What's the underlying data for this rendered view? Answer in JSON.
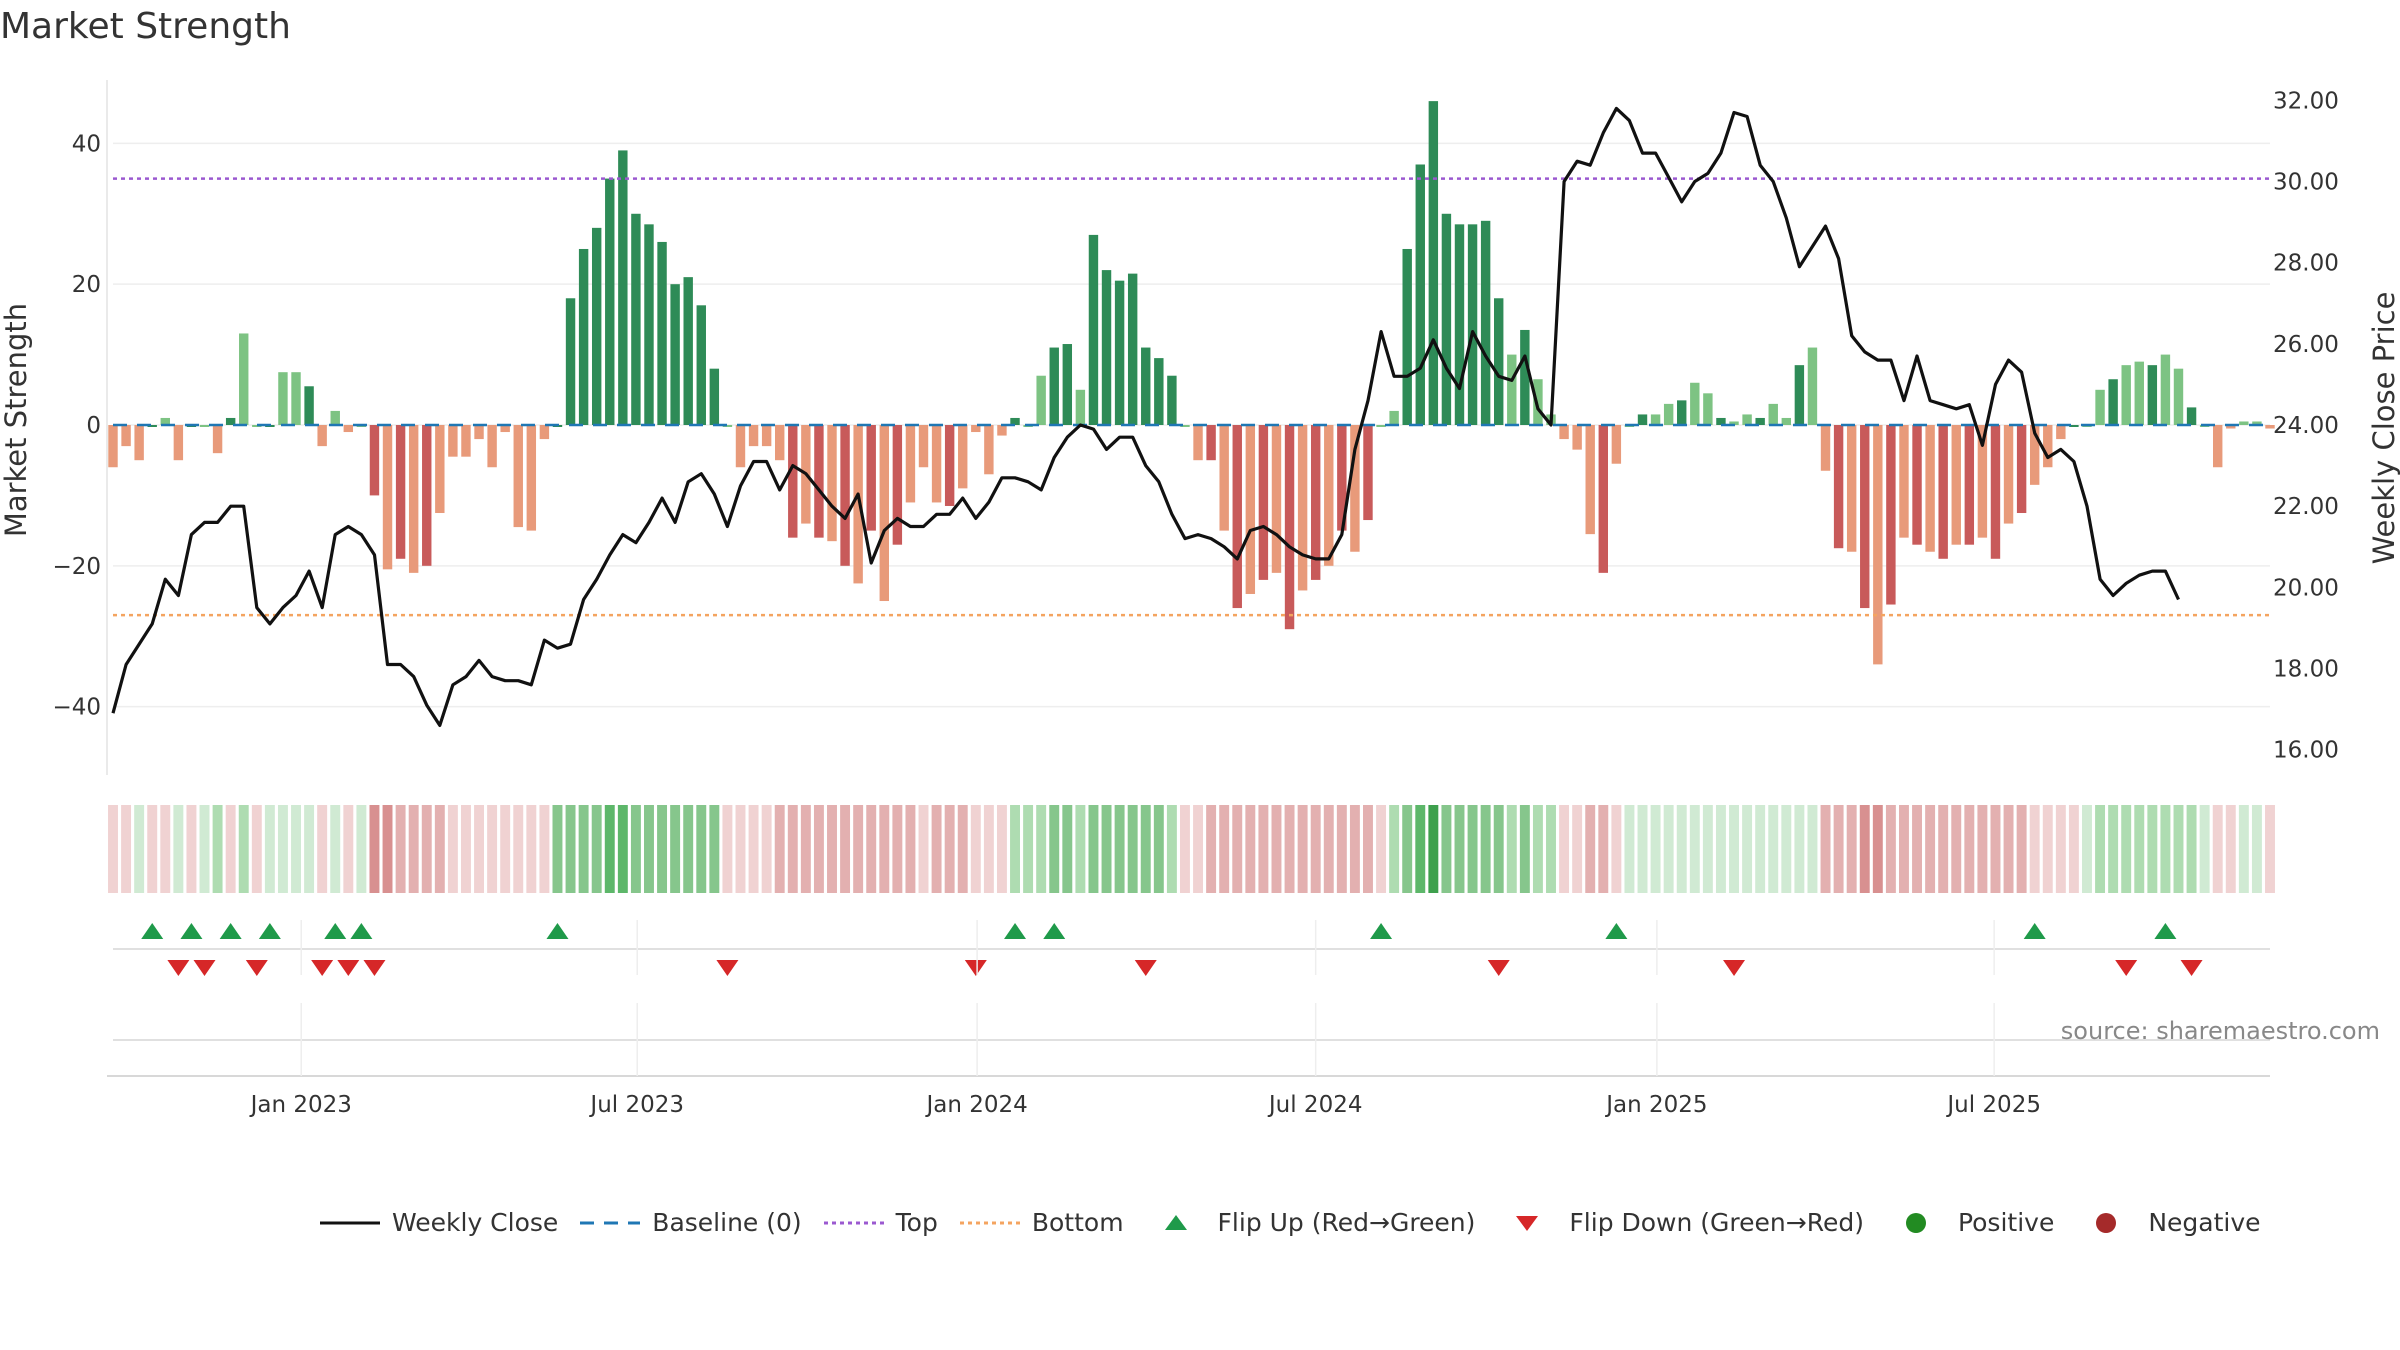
{
  "title": "Market Strength",
  "source": "source: sharemaestro.com",
  "colors": {
    "strong_green": "#2e8b57",
    "light_green": "#7dc383",
    "strong_red": "#c85a5a",
    "light_red": "#e89a7a",
    "baseline": "#1f77b4",
    "top": "#9b59d0",
    "bottom": "#f4a460",
    "flip_up": "#1f9a4a",
    "flip_down": "#d62728",
    "price_line": "#111111"
  },
  "legend": [
    {
      "key": "close",
      "label": "Weekly Close"
    },
    {
      "key": "baseline",
      "label": "Baseline (0)"
    },
    {
      "key": "top",
      "label": "Top"
    },
    {
      "key": "bottom",
      "label": "Bottom"
    },
    {
      "key": "flip_up",
      "label": "Flip Up (Red→Green)"
    },
    {
      "key": "flip_down",
      "label": "Flip Down (Green→Red)"
    },
    {
      "key": "positive",
      "label": "Positive"
    },
    {
      "key": "negative",
      "label": "Negative"
    }
  ],
  "chart_data": {
    "type": "bar",
    "title": "Market Strength",
    "ylabel": "Market Strength",
    "y2label": "Weekly Close Price",
    "ylim": [
      -49,
      49
    ],
    "y2lim": [
      15.5,
      32.5
    ],
    "yticks": [
      40,
      20,
      0,
      -20,
      -40
    ],
    "yticklabels": [
      "40",
      "20",
      "0",
      "−20",
      "−40"
    ],
    "y2ticks": [
      32,
      30,
      28,
      26,
      24,
      22,
      20,
      18,
      16
    ],
    "y2ticklabels": [
      "32.00",
      "30.00",
      "28.00",
      "26.00",
      "24.00",
      "22.00",
      "20.00",
      "18.00",
      "16.00"
    ],
    "xticks": [
      14.4,
      40.1,
      66.1,
      92.0,
      118.1,
      143.9
    ],
    "xticklabels": [
      "Jan 2023",
      "Jul 2023",
      "Jan 2024",
      "Jul 2024",
      "Jan 2025",
      "Jul 2025"
    ],
    "top_level": 35,
    "bottom_level": -27,
    "baseline_level": 0,
    "strength": [
      -6,
      -3,
      -5,
      0,
      1,
      -5,
      0,
      0,
      -4,
      1,
      13,
      0,
      0,
      7.5,
      7.5,
      5.5,
      -3,
      2,
      -1,
      0,
      -10,
      -20.5,
      -19,
      -21,
      -20,
      -12.5,
      -4.5,
      -4.5,
      -2,
      -6,
      -1,
      -14.5,
      -15,
      -2,
      0,
      18,
      25,
      28,
      35,
      39,
      30,
      28.5,
      26,
      20,
      21,
      17,
      8,
      0,
      -6,
      -3,
      -3,
      -5,
      -16,
      -14,
      -16,
      -16.5,
      -20,
      -22.5,
      -15,
      -25,
      -17,
      -11,
      -6,
      -11,
      -11.5,
      -9,
      -1,
      -7,
      -1.5,
      1,
      0,
      7,
      11,
      11.5,
      5,
      27,
      22,
      20.5,
      21.5,
      11,
      9.5,
      7,
      0,
      -5,
      -5,
      -15,
      -26,
      -24,
      -22,
      -21,
      -29,
      -23.5,
      -22,
      -20,
      -15,
      -18,
      -13.5,
      0,
      2,
      25,
      37,
      46,
      30,
      28.5,
      28.5,
      29,
      18,
      10,
      13.5,
      6.5,
      1.5,
      -2,
      -3.5,
      -15.5,
      -21,
      -5.5,
      0,
      1.5,
      1.5,
      3,
      3.5,
      6,
      4.5,
      1,
      0.5,
      1.5,
      1,
      3,
      1,
      8.5,
      11,
      -6.5,
      -17.5,
      -18,
      -26,
      -34,
      -25.5,
      -16,
      -17,
      -18,
      -19,
      -17,
      -17,
      -16,
      -19,
      -14,
      -12.5,
      -8.5,
      -6,
      -2,
      0,
      0,
      5,
      6.5,
      8.5,
      9,
      8.5,
      10,
      8,
      2.5,
      0,
      -6,
      -0.5,
      0.5,
      0.5,
      -0.5
    ],
    "close": [
      16.9,
      18.1,
      18.6,
      19.1,
      20.2,
      19.8,
      21.3,
      21.6,
      21.6,
      22.0,
      22.0,
      19.5,
      19.1,
      19.5,
      19.8,
      20.4,
      19.5,
      21.3,
      21.5,
      21.3,
      20.8,
      18.1,
      18.1,
      17.8,
      17.1,
      16.6,
      17.6,
      17.8,
      18.2,
      17.8,
      17.7,
      17.7,
      17.6,
      18.7,
      18.5,
      18.6,
      19.7,
      20.2,
      20.8,
      21.3,
      21.1,
      21.6,
      22.2,
      21.6,
      22.6,
      22.8,
      22.3,
      21.5,
      22.5,
      23.1,
      23.1,
      22.4,
      23.0,
      22.8,
      22.4,
      22.0,
      21.7,
      22.3,
      20.6,
      21.4,
      21.7,
      21.5,
      21.5,
      21.8,
      21.8,
      22.2,
      21.7,
      22.1,
      22.7,
      22.7,
      22.6,
      22.4,
      23.2,
      23.7,
      24.0,
      23.9,
      23.4,
      23.7,
      23.7,
      23.0,
      22.6,
      21.8,
      21.2,
      21.3,
      21.2,
      21.0,
      20.7,
      21.4,
      21.5,
      21.3,
      21.0,
      20.8,
      20.7,
      20.7,
      21.3,
      23.4,
      24.6,
      26.3,
      25.2,
      25.2,
      25.4,
      26.1,
      25.4,
      24.9,
      26.3,
      25.7,
      25.2,
      25.1,
      25.7,
      24.4,
      24.0,
      30.0,
      30.5,
      30.4,
      31.2,
      31.8,
      31.5,
      30.7,
      30.7,
      30.1,
      29.5,
      30.0,
      30.2,
      30.7,
      31.7,
      31.6,
      30.4,
      30.0,
      29.1,
      27.9,
      28.4,
      28.9,
      28.1,
      26.2,
      25.8,
      25.6,
      25.6,
      24.6,
      25.7,
      24.6,
      24.5,
      24.4,
      24.5,
      23.5,
      25.0,
      25.6,
      25.3,
      23.8,
      23.2,
      23.4,
      23.1,
      22.0,
      20.2,
      19.8,
      20.1,
      20.3,
      20.4,
      20.4,
      19.7
    ],
    "bands": [
      -1,
      -1,
      1,
      -1,
      -1,
      1,
      -1,
      1,
      2,
      -1,
      2,
      -1,
      1,
      1,
      1,
      1,
      -1,
      1,
      -1,
      1,
      -3,
      -3,
      -2,
      -2,
      -2,
      -2,
      -1,
      -1,
      -1,
      -1,
      -1,
      -1,
      -1,
      -1,
      3,
      3,
      3,
      3,
      4,
      4,
      3,
      3,
      3,
      3,
      3,
      3,
      3,
      -1,
      -1,
      -1,
      -1,
      -2,
      -2,
      -2,
      -2,
      -2,
      -2,
      -2,
      -2,
      -2,
      -2,
      -2,
      -1,
      -2,
      -2,
      -2,
      -1,
      -1,
      -1,
      2,
      2,
      2,
      3,
      3,
      2,
      3,
      3,
      3,
      3,
      3,
      3,
      2,
      -1,
      -1,
      -2,
      -2,
      -2,
      -2,
      -2,
      -2,
      -2,
      -2,
      -2,
      -2,
      -2,
      -2,
      -2,
      -1,
      2,
      3,
      4,
      5,
      3,
      3,
      3,
      3,
      3,
      2,
      3,
      2,
      2,
      -1,
      -1,
      -2,
      -2,
      -1,
      1,
      1,
      1,
      1,
      1,
      1,
      1,
      1,
      1,
      1,
      1,
      1,
      1,
      1,
      1,
      -2,
      -2,
      -2,
      -3,
      -3,
      -2,
      -2,
      -2,
      -2,
      -2,
      -2,
      -2,
      -2,
      -2,
      -2,
      -2,
      -1,
      -1,
      -1,
      -1,
      1,
      2,
      2,
      2,
      2,
      2,
      2,
      2,
      2,
      1,
      -1,
      -1,
      1,
      1,
      -1
    ],
    "flip_up": [
      3,
      6,
      9,
      12,
      17,
      19,
      34,
      69,
      72,
      97,
      115,
      147,
      157
    ],
    "flip_down": [
      5,
      7,
      11,
      16,
      18,
      20,
      47,
      66,
      79,
      106,
      124,
      154,
      159
    ]
  }
}
